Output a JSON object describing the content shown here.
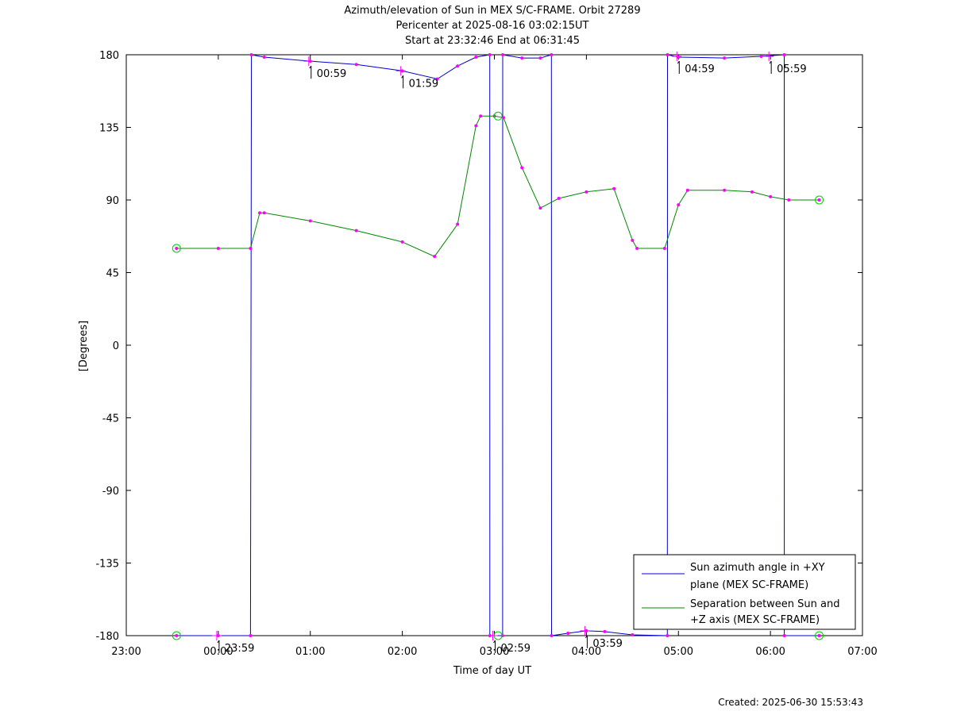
{
  "chart_data": {
    "type": "line",
    "title_lines": [
      "Azimuth/elevation of Sun in MEX S/C-FRAME.  Orbit 27289",
      "Pericenter at 2025-08-16 03:02:15UT",
      "Start at 23:32:46 End at 06:31:45"
    ],
    "xlabel": "Time of day UT",
    "ylabel": "[Degrees]",
    "xlim_hours": [
      23.0,
      31.0
    ],
    "ylim": [
      -180,
      180
    ],
    "x_ticks": [
      {
        "h": 23,
        "label": "23:00"
      },
      {
        "h": 24,
        "label": "00:00"
      },
      {
        "h": 25,
        "label": "01:00"
      },
      {
        "h": 26,
        "label": "02:00"
      },
      {
        "h": 27,
        "label": "03:00"
      },
      {
        "h": 28,
        "label": "04:00"
      },
      {
        "h": 29,
        "label": "05:00"
      },
      {
        "h": 30,
        "label": "06:00"
      },
      {
        "h": 31,
        "label": "07:00"
      }
    ],
    "y_ticks": [
      {
        "v": 180,
        "label": "180"
      },
      {
        "v": 135,
        "label": "135"
      },
      {
        "v": 90,
        "label": "90"
      },
      {
        "v": 45,
        "label": "45"
      },
      {
        "v": 0,
        "label": "0"
      },
      {
        "v": -45,
        "label": "-45"
      },
      {
        "v": -90,
        "label": "-90"
      },
      {
        "v": -135,
        "label": "-135"
      },
      {
        "v": -180,
        "label": "-180"
      }
    ],
    "series": [
      {
        "name": "Sun azimuth angle in +XY plane (MEX SC-FRAME)",
        "legend_lines": [
          "Sun azimuth angle in +XY",
          "plane (MEX SC-FRAME)"
        ],
        "color": "#0000cc",
        "points": [
          [
            23.546,
            -180
          ],
          [
            24.0,
            -180
          ],
          [
            24.35,
            -180
          ],
          [
            24.36,
            180
          ],
          [
            24.5,
            178.5
          ],
          [
            25.0,
            176
          ],
          [
            25.5,
            174
          ],
          [
            26.0,
            170
          ],
          [
            26.38,
            165
          ],
          [
            26.6,
            173
          ],
          [
            26.8,
            178.5
          ],
          [
            26.95,
            180
          ],
          [
            26.951,
            -180
          ],
          [
            27.09,
            -180
          ],
          [
            27.091,
            180
          ],
          [
            27.3,
            178
          ],
          [
            27.5,
            178
          ],
          [
            27.62,
            180
          ],
          [
            27.621,
            -180
          ],
          [
            27.8,
            -178.5
          ],
          [
            28.0,
            -177
          ],
          [
            28.2,
            -177.5
          ],
          [
            28.5,
            -179.5
          ],
          [
            28.88,
            -180
          ],
          [
            28.881,
            180
          ],
          [
            29.0,
            178.5
          ],
          [
            29.5,
            178
          ],
          [
            29.9,
            179
          ],
          [
            30.15,
            180
          ],
          [
            30.151,
            -180
          ],
          [
            30.53,
            -180
          ]
        ]
      },
      {
        "name": "Separation between Sun and +Z axis (MEX SC-FRAME)",
        "legend_lines": [
          "Separation between Sun and",
          "+Z axis (MEX SC-FRAME)"
        ],
        "color": "#008800",
        "points": [
          [
            23.546,
            60
          ],
          [
            24.0,
            60
          ],
          [
            24.35,
            60
          ],
          [
            24.45,
            82
          ],
          [
            24.5,
            82
          ],
          [
            25.0,
            77
          ],
          [
            25.5,
            71
          ],
          [
            26.0,
            64
          ],
          [
            26.35,
            55
          ],
          [
            26.6,
            75
          ],
          [
            26.8,
            136
          ],
          [
            26.85,
            142
          ],
          [
            27.0,
            142
          ],
          [
            27.1,
            141
          ],
          [
            27.3,
            110
          ],
          [
            27.5,
            85
          ],
          [
            27.7,
            91
          ],
          [
            28.0,
            95
          ],
          [
            28.3,
            97
          ],
          [
            28.5,
            65
          ],
          [
            28.55,
            60
          ],
          [
            28.85,
            60
          ],
          [
            29.0,
            87
          ],
          [
            29.1,
            96
          ],
          [
            29.5,
            96
          ],
          [
            29.8,
            95
          ],
          [
            30.0,
            92
          ],
          [
            30.2,
            90
          ],
          [
            30.53,
            90
          ]
        ]
      }
    ],
    "time_marks": [
      {
        "h": 23.983,
        "value": -180,
        "label": "23:59"
      },
      {
        "h": 24.983,
        "value": 176,
        "label": "00:59"
      },
      {
        "h": 25.983,
        "value": 170,
        "label": "01:59"
      },
      {
        "h": 26.983,
        "value": -180,
        "label": "02:59"
      },
      {
        "h": 27.983,
        "value": -177,
        "label": "03:59"
      },
      {
        "h": 28.983,
        "value": 179,
        "label": "04:59"
      },
      {
        "h": 29.983,
        "value": 179,
        "label": "05:59"
      }
    ],
    "circle_markers": [
      {
        "h": 23.546,
        "value": 60
      },
      {
        "h": 23.546,
        "value": -180
      },
      {
        "h": 27.04,
        "value": 142
      },
      {
        "h": 27.04,
        "value": -180
      },
      {
        "h": 30.53,
        "value": 90
      },
      {
        "h": 30.53,
        "value": -180
      }
    ],
    "legend_position": "bottom-right",
    "grid": false,
    "marker_color": "#ff00ff",
    "circle_color": "#00cc00"
  },
  "footer": {
    "created": "Created: 2025-06-30 15:53:43"
  }
}
